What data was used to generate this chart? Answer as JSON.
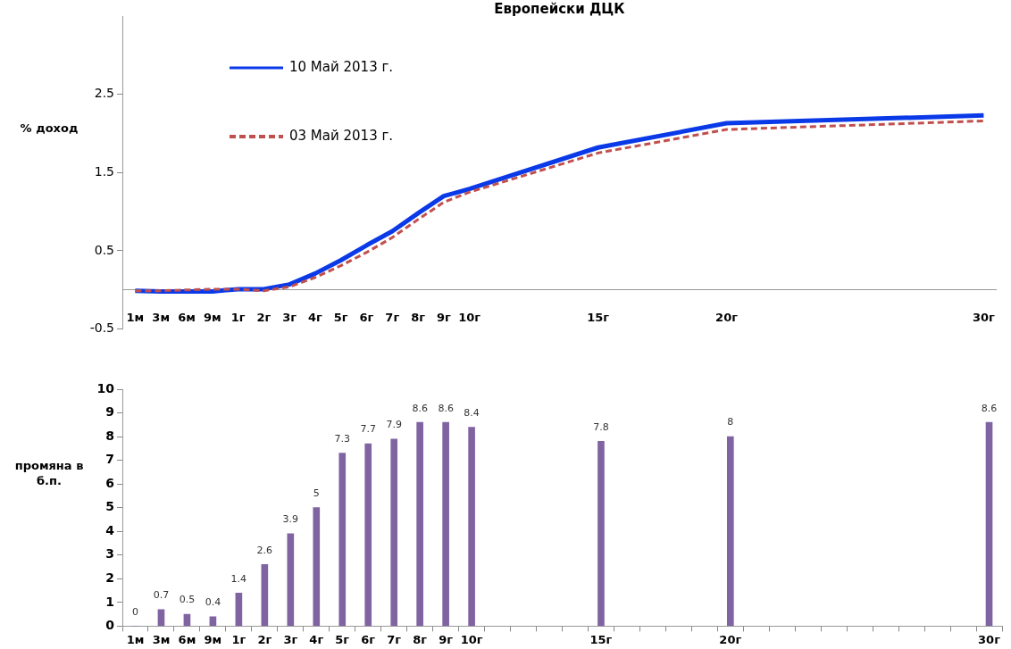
{
  "chart_data": [
    {
      "type": "line",
      "title": "Европейски ДЦК",
      "ylabel": "% доход",
      "categories": [
        "1м",
        "3м",
        "6м",
        "9м",
        "1г",
        "2г",
        "3г",
        "4г",
        "5г",
        "6г",
        "7г",
        "8г",
        "9г",
        "10г",
        null,
        null,
        null,
        null,
        "15г",
        null,
        null,
        null,
        null,
        "20г",
        null,
        null,
        null,
        null,
        null,
        null,
        null,
        null,
        null,
        "30г"
      ],
      "series": [
        {
          "name": "10 Май 2013 г.",
          "color": "#0a3ae8",
          "line_style": "solid",
          "values": [
            -0.01,
            -0.02,
            -0.02,
            -0.02,
            0.01,
            0.01,
            0.07,
            0.21,
            0.38,
            0.57,
            0.75,
            0.98,
            1.2,
            1.29,
            null,
            null,
            null,
            null,
            1.82,
            null,
            null,
            null,
            null,
            2.13,
            null,
            null,
            null,
            null,
            null,
            null,
            null,
            null,
            null,
            2.23
          ]
        },
        {
          "name": "03 Май 2013 г.",
          "color": "#c0504d",
          "line_style": "dashed",
          "values": [
            -0.01,
            -0.01,
            0.0,
            0.01,
            0.01,
            -0.01,
            0.04,
            0.16,
            0.31,
            0.48,
            0.67,
            0.9,
            1.12,
            1.25,
            null,
            null,
            null,
            null,
            1.75,
            null,
            null,
            null,
            null,
            2.05,
            null,
            null,
            null,
            null,
            null,
            null,
            null,
            null,
            null,
            2.16
          ]
        }
      ],
      "ylim": [
        -0.5,
        3.5
      ],
      "yticks": [
        -0.5,
        0.5,
        1.5,
        2.5
      ],
      "grid": false,
      "legend": "top left",
      "marker": "none"
    },
    {
      "type": "bar",
      "ylabel": "промяна в б.п.",
      "categories": [
        "1м",
        "3м",
        "6м",
        "9м",
        "1г",
        "2г",
        "3г",
        "4г",
        "5г",
        "6г",
        "7г",
        "8г",
        "9г",
        "10г",
        null,
        null,
        null,
        null,
        "15г",
        null,
        null,
        null,
        null,
        "20г",
        null,
        null,
        null,
        null,
        null,
        null,
        null,
        null,
        null,
        "30г"
      ],
      "values": [
        0,
        0.7,
        0.5,
        0.4,
        1.4,
        2.6,
        3.9,
        5,
        7.3,
        7.7,
        7.9,
        8.6,
        8.6,
        8.4,
        null,
        null,
        null,
        null,
        7.8,
        null,
        null,
        null,
        null,
        8,
        null,
        null,
        null,
        null,
        null,
        null,
        null,
        null,
        null,
        8.6
      ],
      "color": "#8064a2",
      "ylim": [
        0,
        10
      ],
      "yticks": [
        0,
        1,
        2,
        3,
        4,
        5,
        6,
        7,
        8,
        9,
        10
      ],
      "grid": false,
      "data_labels": true,
      "legend": false
    }
  ]
}
